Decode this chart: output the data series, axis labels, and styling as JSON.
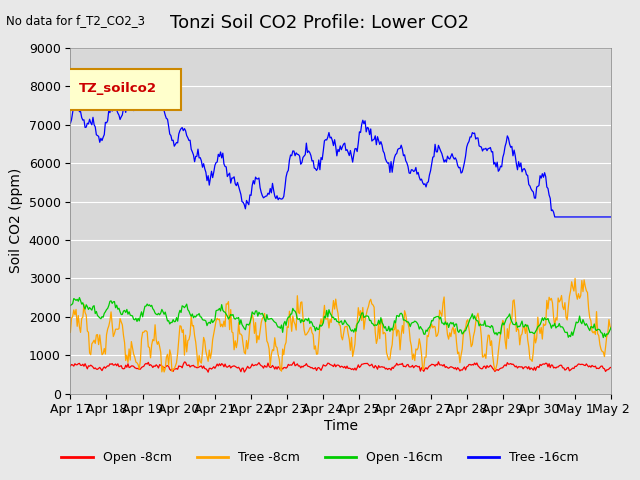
{
  "title": "Tonzi Soil CO2 Profile: Lower CO2",
  "subtitle": "No data for f_T2_CO2_3",
  "ylabel": "Soil CO2 (ppm)",
  "xlabel": "Time",
  "legend_label": "TZ_soilco2",
  "ylim": [
    0,
    9000
  ],
  "yticks": [
    0,
    1000,
    2000,
    3000,
    4000,
    5000,
    6000,
    7000,
    8000,
    9000
  ],
  "xtick_labels": [
    "Apr 17",
    "Apr 18",
    "Apr 19",
    "Apr 20",
    "Apr 21",
    "Apr 22",
    "Apr 23",
    "Apr 24",
    "Apr 25",
    "Apr 26",
    "Apr 27",
    "Apr 28",
    "Apr 29",
    "Apr 30",
    "May 1",
    "May 2"
  ],
  "line_colors": {
    "open_8cm": "#ff0000",
    "tree_8cm": "#ffa500",
    "open_16cm": "#00cc00",
    "tree_16cm": "#0000ff"
  },
  "legend_entries": [
    "Open -8cm",
    "Tree -8cm",
    "Open -16cm",
    "Tree -16cm"
  ],
  "bg_color": "#e8e8e8",
  "plot_bg_color": "#d8d8d8",
  "title_fontsize": 13,
  "label_fontsize": 10,
  "tick_fontsize": 9
}
